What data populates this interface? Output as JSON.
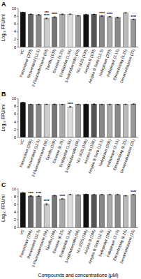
{
  "chart_data": [
    {
      "type": "bar",
      "title": "A",
      "categories": [
        "VC",
        "Famciclovir (200)",
        "Resveratrol (12.5)",
        "2-Fluoroadenosine (50)",
        "Tamiflu (100)",
        "Emetine (6.25)",
        "Enalaprilat (1.56)",
        "5-Iodotubercidin (50)",
        "NU 1025 (100)",
        "Ampho B (100)",
        "Ampho B Sorb (12.5)",
        "Nefirpiravir (200)",
        "Fabipiravir (3.15)",
        "Eltrombopag (6.25)",
        "Dexamethasone (25)"
      ],
      "values": [
        9.0,
        8.5,
        8.35,
        7.4,
        7.75,
        8.5,
        8.5,
        8.1,
        8.4,
        8.5,
        8.05,
        7.85,
        7.65,
        8.85,
        7.15
      ],
      "errors": [
        0.04,
        0.08,
        0.1,
        0.12,
        0.1,
        0.08,
        0.08,
        0.08,
        0.08,
        0.04,
        0.12,
        0.1,
        0.12,
        0.08,
        0.12
      ],
      "annotations": [
        null,
        null,
        null,
        [
          "****",
          "***"
        ],
        [
          "****"
        ],
        null,
        null,
        null,
        null,
        null,
        [
          "****"
        ],
        [
          "****"
        ],
        null,
        null,
        [
          "****"
        ]
      ],
      "colors": [
        "#111111",
        "#666666",
        "#888888",
        "#cccccc",
        "#777777",
        "#aaaaaa",
        "#dddddd",
        "#999999",
        "#111111",
        "#555555",
        "#888888",
        "#aaaaaa",
        "#888888",
        "#bbbbbb",
        "#999999"
      ],
      "y_label": "Log₁₀ FFU/ml",
      "ylim": [
        0,
        10
      ],
      "yticks": [
        0,
        2,
        4,
        6,
        8,
        10
      ],
      "grid": false
    },
    {
      "type": "bar",
      "title": "B",
      "categories": [
        "VC",
        "Famciclovir (200)",
        "Resveratrol (12.5)",
        "2-Fluoroadenosine (50)",
        "Tamiflu (100)",
        "Emetine (6.25)",
        "Enalaprilat (1.56)",
        "5-Iodotubercidin (50)",
        "NU 1025 (100)",
        "Ampho B (100)",
        "Ampho B Sorb (12.5)",
        "Nefirpiravir (200)",
        "Fabipiravir (3.15)",
        "Eltrombopag (6.25)",
        "Dexamethasone (25)"
      ],
      "values": [
        9.0,
        8.5,
        8.5,
        8.5,
        8.55,
        8.5,
        7.85,
        8.5,
        8.55,
        8.6,
        8.5,
        8.5,
        8.5,
        8.5,
        8.6
      ],
      "errors": [
        0.04,
        0.06,
        0.06,
        0.06,
        0.06,
        0.06,
        0.12,
        0.06,
        0.04,
        0.04,
        0.06,
        0.06,
        0.06,
        0.06,
        0.06
      ],
      "annotations": [
        null,
        null,
        null,
        null,
        null,
        null,
        [
          "****"
        ],
        null,
        null,
        null,
        null,
        null,
        null,
        null,
        null
      ],
      "colors": [
        "#111111",
        "#666666",
        "#888888",
        "#cccccc",
        "#777777",
        "#aaaaaa",
        "#dddddd",
        "#999999",
        "#111111",
        "#555555",
        "#888888",
        "#aaaaaa",
        "#888888",
        "#bbbbbb",
        "#999999"
      ],
      "y_label": "Log₁₀ FFU/ml",
      "ylim": [
        0,
        10
      ],
      "yticks": [
        0,
        2,
        4,
        6,
        8,
        10
      ],
      "grid": false
    },
    {
      "type": "bar",
      "title": "C",
      "categories": [
        "VC",
        "Famciclovir (200)",
        "Resveratrol (12.5)",
        "2-Fluoroadenosine (50)",
        "Tamiflu (100)",
        "Emetine (6.25)",
        "Enalaprilat (1.56)",
        "5-Iodotubercidin (50)",
        "NU 1025 (100)",
        "Ampho B (100)",
        "Ampho B Sorb (12.5)",
        "Nefirpiravir (200)",
        "Fabipiravir (3.15)",
        "Eltrombopag (6.25)",
        "Dexamethasone (25)"
      ],
      "values": [
        9.0,
        8.15,
        8.1,
        6.0,
        8.25,
        7.4,
        8.5,
        8.4,
        8.6,
        8.5,
        8.5,
        8.5,
        8.5,
        8.2,
        8.5
      ],
      "errors": [
        0.04,
        0.08,
        0.1,
        0.18,
        0.08,
        0.12,
        0.08,
        0.06,
        0.04,
        0.04,
        0.06,
        0.06,
        0.06,
        0.08,
        0.06
      ],
      "annotations": [
        null,
        [
          "****"
        ],
        [
          "****"
        ],
        [
          "****"
        ],
        null,
        [
          "****"
        ],
        null,
        null,
        null,
        null,
        null,
        null,
        null,
        null,
        [
          "****"
        ]
      ],
      "colors": [
        "#111111",
        "#666666",
        "#888888",
        "#cccccc",
        "#777777",
        "#aaaaaa",
        "#dddddd",
        "#999999",
        "#111111",
        "#555555",
        "#888888",
        "#aaaaaa",
        "#888888",
        "#bbbbbb",
        "#999999"
      ],
      "y_label": "Log₁₀ FFU/ml",
      "x_label": "Compounds and concentrations (μM)",
      "ylim": [
        0,
        10
      ],
      "yticks": [
        0,
        2,
        4,
        6,
        8,
        10
      ],
      "grid": false
    }
  ]
}
